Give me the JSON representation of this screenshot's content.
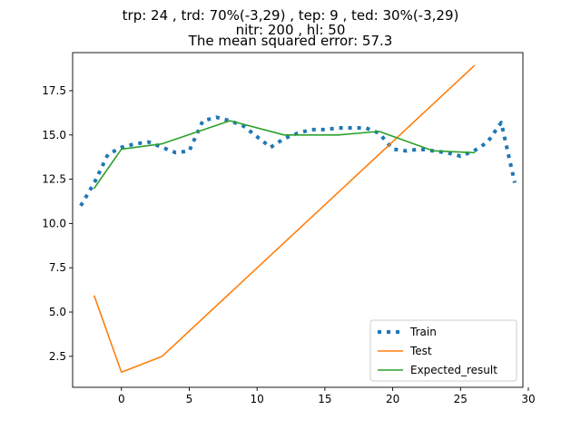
{
  "chart_data": {
    "type": "line",
    "title_lines": [
      "trp: 24 , trd: 70%(-3,29) , tep: 9 , ted: 30%(-3,29)",
      "nitr: 200 , hl: 50",
      "The mean squared error: 57.3"
    ],
    "xlabel": "",
    "ylabel": "",
    "xlim": [
      -3.6,
      29.6
    ],
    "ylim": [
      0.75,
      19.65
    ],
    "xticks": [
      0,
      5,
      10,
      15,
      20,
      25,
      30
    ],
    "yticks": [
      2.5,
      5.0,
      7.5,
      10.0,
      12.5,
      15.0,
      17.5
    ],
    "ytick_labels": [
      "2.5",
      "5.0",
      "7.5",
      "10.0",
      "12.5",
      "15.0",
      "17.5"
    ],
    "grid": false,
    "legend_position": "lower-right",
    "series": [
      {
        "name": "Train",
        "style": "dotted",
        "color": "#1f77b4",
        "x": [
          -3,
          -2,
          -1,
          0,
          1,
          2,
          3,
          4,
          5,
          6,
          7,
          8,
          9,
          10,
          11,
          12,
          13,
          14,
          15,
          16,
          17,
          18,
          19,
          20,
          21,
          22,
          23,
          24,
          25,
          26,
          27,
          28,
          29
        ],
        "y": [
          11.0,
          12.3,
          13.9,
          14.3,
          14.5,
          14.6,
          14.3,
          14.0,
          14.1,
          15.8,
          16.0,
          15.8,
          15.5,
          14.9,
          14.3,
          14.8,
          15.1,
          15.3,
          15.3,
          15.4,
          15.4,
          15.4,
          15.1,
          14.2,
          14.1,
          14.2,
          14.1,
          14.0,
          13.8,
          14.1,
          14.6,
          15.7,
          12.3
        ]
      },
      {
        "name": "Test",
        "style": "solid",
        "color": "#ff7f0e",
        "x": [
          -2,
          0,
          3,
          26
        ],
        "y": [
          5.9,
          1.6,
          2.5,
          18.9
        ]
      },
      {
        "name": "Expected_result",
        "style": "solid",
        "color": "#2ca02c",
        "x": [
          -2,
          0,
          3,
          8,
          12,
          16,
          19,
          23,
          26
        ],
        "y": [
          12.0,
          14.2,
          14.5,
          15.8,
          15.0,
          15.0,
          15.2,
          14.1,
          14.0
        ]
      }
    ]
  }
}
